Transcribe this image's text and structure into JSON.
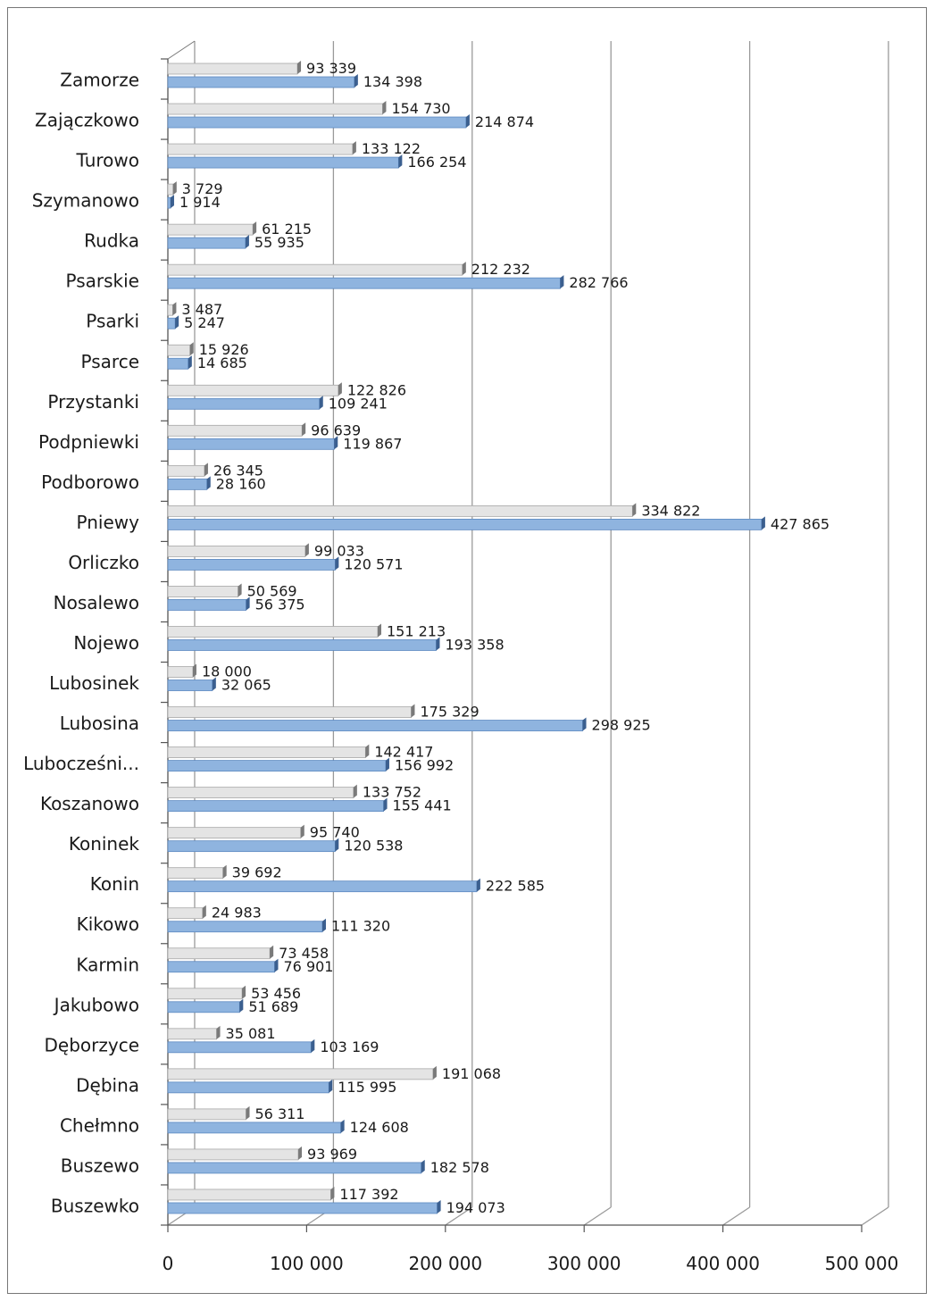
{
  "chart_data": {
    "type": "bar",
    "orientation": "horizontal",
    "title": "",
    "xlabel": "",
    "ylabel": "",
    "xlim": [
      0,
      500000
    ],
    "x_ticks": [
      "0",
      "100 000",
      "200 000",
      "300 000",
      "400 000",
      "500 000"
    ],
    "grid": true,
    "legend": "none",
    "categories": [
      "Zamorze",
      "Zajączkowo",
      "Turowo",
      "Szymanowo",
      "Rudka",
      "Psarskie",
      "Psarki",
      "Psarce",
      "Przystanki",
      "Podpniewki",
      "Podborowo",
      "Pniewy",
      "Orliczko",
      "Nosalewo",
      "Nojewo",
      "Lubosinek",
      "Lubosina",
      "Lubocześni...",
      "Koszanowo",
      "Koninek",
      "Konin",
      "Kikowo",
      "Karmin",
      "Jakubowo",
      "Dęborzyce",
      "Dębina",
      "Chełmno",
      "Buszewo",
      "Buszewko"
    ],
    "series": [
      {
        "color": "#e4e4e4",
        "values": [
          93339,
          154730,
          133122,
          3729,
          61215,
          212232,
          3487,
          15926,
          122826,
          96639,
          26345,
          334822,
          99033,
          50569,
          151213,
          18000,
          175329,
          142417,
          133752,
          95740,
          39692,
          24983,
          73458,
          53456,
          35081,
          191068,
          56311,
          93969,
          117392
        ],
        "labels": [
          "93 339",
          "154 730",
          "133 122",
          "3 729",
          "61 215",
          "212 232",
          "3 487",
          "15 926",
          "122 826",
          "96 639",
          "26 345",
          "334 822",
          "99 033",
          "50 569",
          "151 213",
          "18 000",
          "175 329",
          "142 417",
          "133 752",
          "95 740",
          "39 692",
          "24 983",
          "73 458",
          "53 456",
          "35 081",
          "191 068",
          "56 311",
          "93 969",
          "117 392"
        ]
      },
      {
        "color": "#8fb4df",
        "values": [
          134398,
          214874,
          166254,
          1914,
          55935,
          282766,
          5247,
          14685,
          109241,
          119867,
          28160,
          427865,
          120571,
          56375,
          193358,
          32065,
          298925,
          156992,
          155441,
          120538,
          222585,
          111320,
          76901,
          51689,
          103169,
          115995,
          124608,
          182578,
          194073
        ],
        "labels": [
          "134 398",
          "214 874",
          "166 254",
          "1 914",
          "55 935",
          "282 766",
          "5 247",
          "14 685",
          "109 241",
          "119 867",
          "28 160",
          "427 865",
          "120 571",
          "56 375",
          "193 358",
          "32 065",
          "298 925",
          "156 992",
          "155 441",
          "120 538",
          "222 585",
          "111 320",
          "76 901",
          "51 689",
          "103 169",
          "115 995",
          "124 608",
          "182 578",
          "194 073"
        ]
      }
    ]
  }
}
